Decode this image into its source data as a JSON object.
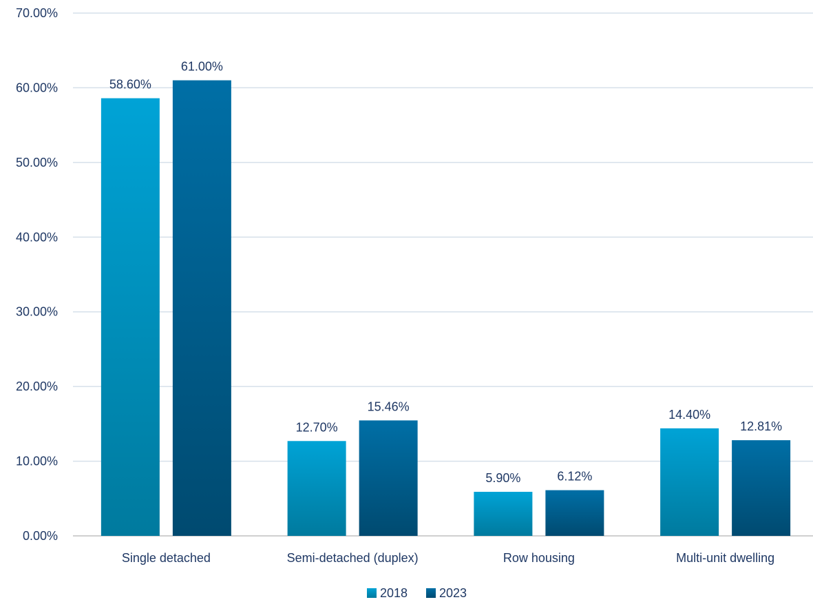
{
  "chart_data": {
    "type": "bar",
    "categories": [
      "Single detached",
      "Semi-detached (duplex)",
      "Row housing",
      "Multi-unit dwelling"
    ],
    "series": [
      {
        "name": "2018",
        "values": [
          58.6,
          12.7,
          5.9,
          14.4
        ],
        "labels": [
          "58.60%",
          "12.70%",
          "5.90%",
          "14.40%"
        ],
        "color_top": "#00a3d6",
        "color_bottom": "#007a9e"
      },
      {
        "name": "2023",
        "values": [
          61.0,
          15.46,
          6.12,
          12.81
        ],
        "labels": [
          "61.00%",
          "15.46%",
          "6.12%",
          "12.81%"
        ],
        "color_top": "#006fa6",
        "color_bottom": "#004a70"
      }
    ],
    "ylim": [
      0,
      70
    ],
    "yticks": [
      0,
      10,
      20,
      30,
      40,
      50,
      60,
      70
    ],
    "ytick_labels": [
      "0.00%",
      "10.00%",
      "20.00%",
      "30.00%",
      "40.00%",
      "50.00%",
      "60.00%",
      "70.00%"
    ],
    "grid": true,
    "legend": "bottom-center",
    "title": "",
    "xlabel": "",
    "ylabel": ""
  },
  "colors": {
    "text": "#1f3864",
    "grid": "#d6e0ea",
    "axis": "#bfbfbf"
  }
}
